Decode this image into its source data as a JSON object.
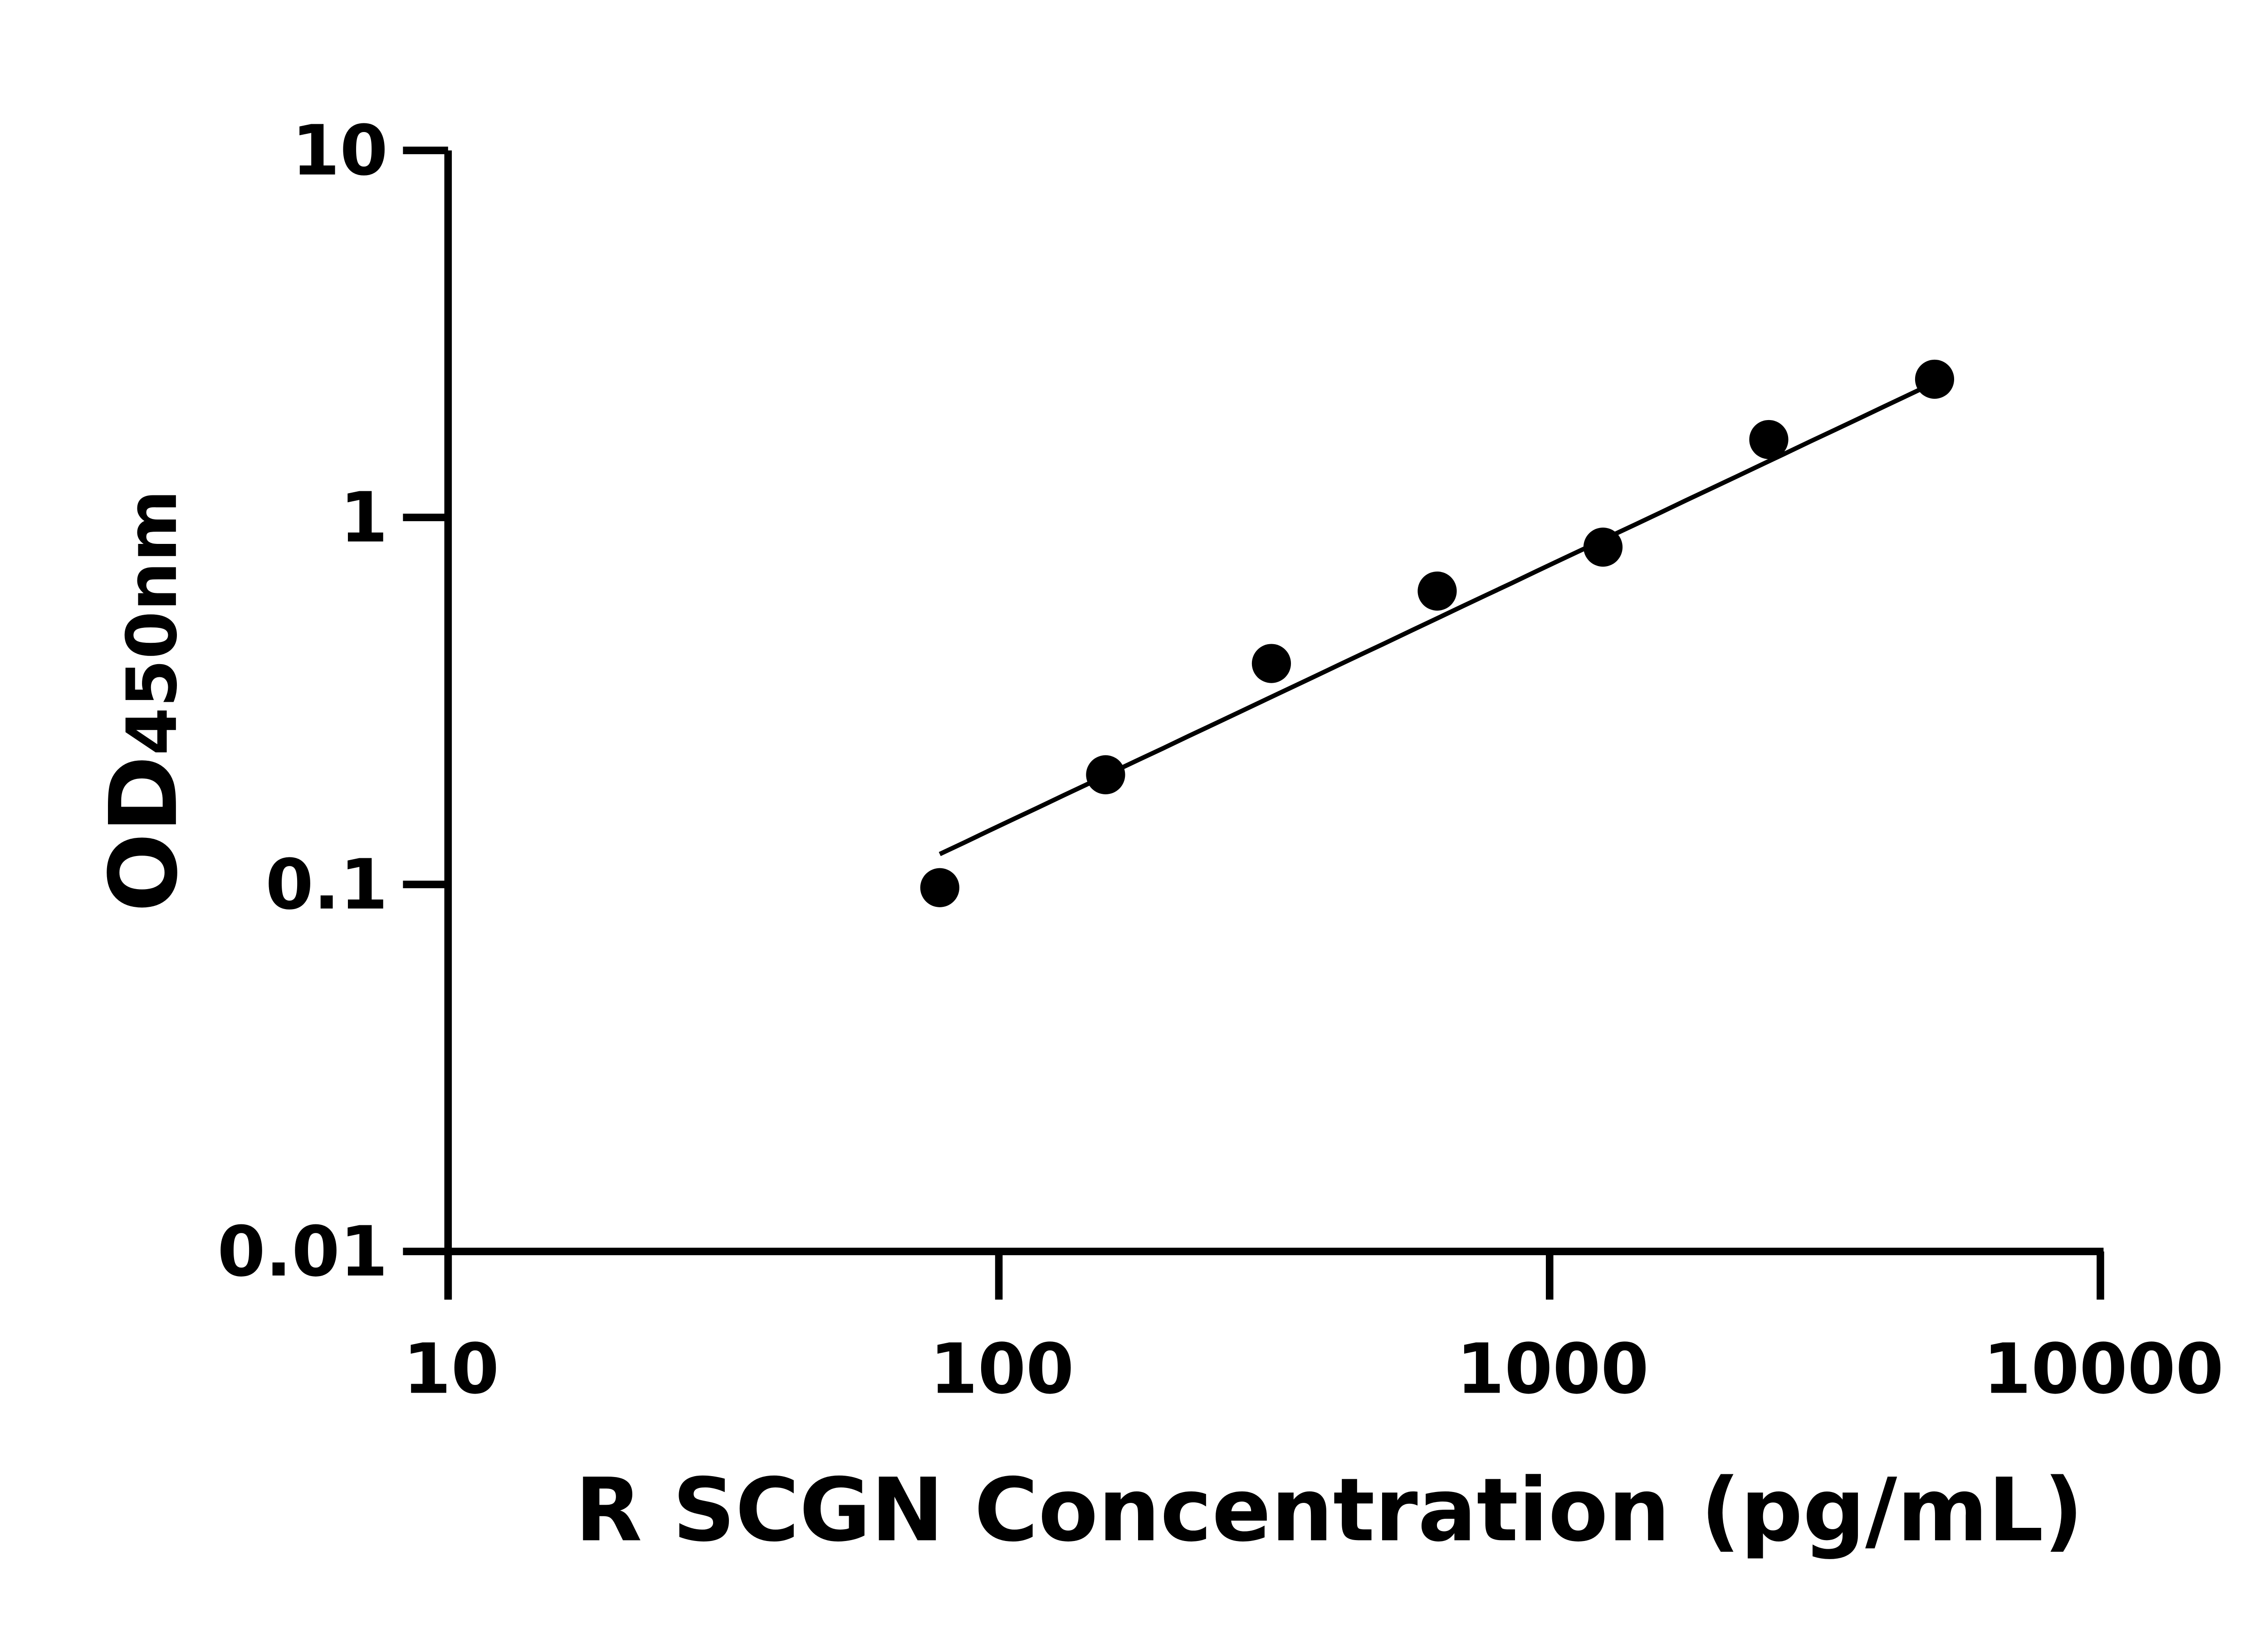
{
  "chart_data": {
    "type": "scatter",
    "title": "",
    "xlabel": "R SCGN Concentration (pg/mL)",
    "ylabel_main": "OD",
    "ylabel_sub": "450nm",
    "x_scale": "log",
    "y_scale": "log",
    "xlim": [
      10,
      10000
    ],
    "ylim": [
      0.01,
      10
    ],
    "x_ticks": [
      "10",
      "100",
      "1000",
      "10000"
    ],
    "y_ticks": [
      "10",
      "1",
      "0.1",
      "0.01"
    ],
    "grid": false,
    "legend": "none",
    "marker_color": "#000000",
    "points": [
      {
        "x": 78.125,
        "y": 0.098
      },
      {
        "x": 156.25,
        "y": 0.199
      },
      {
        "x": 312.5,
        "y": 0.4
      },
      {
        "x": 625,
        "y": 0.63
      },
      {
        "x": 1250,
        "y": 0.83
      },
      {
        "x": 2500,
        "y": 1.63
      },
      {
        "x": 5000,
        "y": 2.38
      }
    ],
    "fit_line": {
      "type": "power",
      "x_range": [
        78.125,
        5000
      ],
      "y_at_ends": [
        0.121,
        2.33
      ]
    }
  }
}
